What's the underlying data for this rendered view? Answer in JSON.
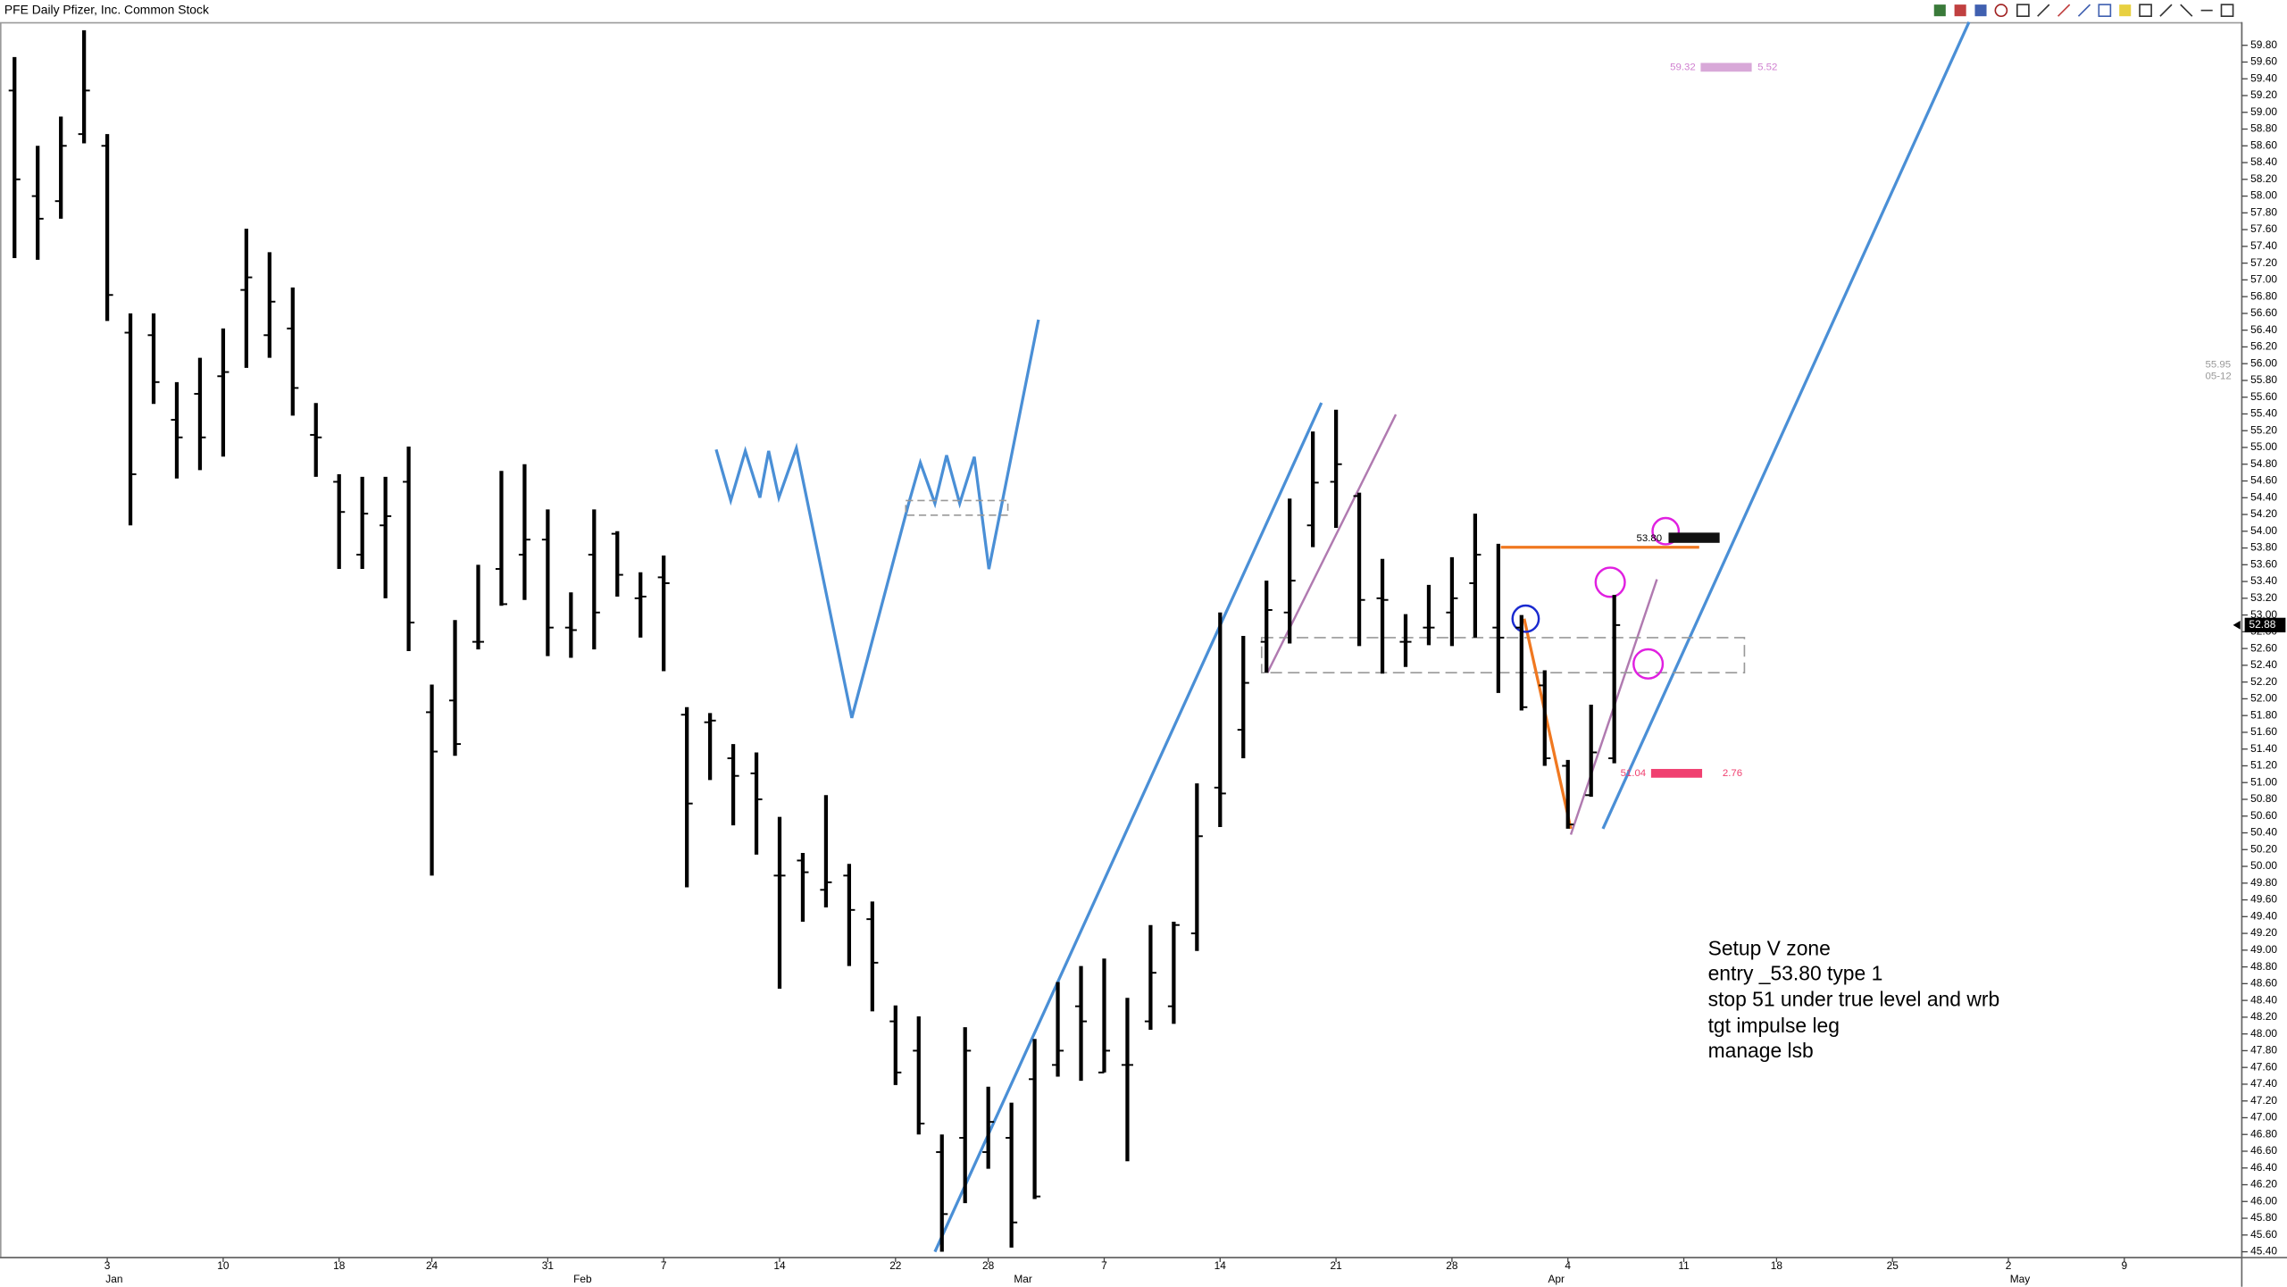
{
  "chart_data": {
    "type": "ohlc",
    "title": "PFE Daily Pfizer, Inc. Common Stock",
    "categories": [
      null,
      null,
      null,
      null,
      "3",
      null,
      null,
      null,
      null,
      "10",
      null,
      null,
      null,
      null,
      "18",
      null,
      null,
      null,
      "24",
      null,
      null,
      null,
      null,
      "31",
      null,
      null,
      null,
      null,
      "7",
      null,
      null,
      null,
      null,
      "14",
      null,
      null,
      null,
      null,
      "22",
      null,
      null,
      null,
      "28",
      null,
      null,
      null,
      null,
      "7",
      null,
      null,
      null,
      null,
      "14",
      null,
      null,
      null,
      null,
      "21",
      null,
      null,
      null,
      null,
      "28",
      null,
      null,
      null,
      null,
      "4",
      null,
      null,
      null,
      null,
      "11",
      null,
      null,
      null,
      "18",
      null,
      null,
      null,
      null,
      "25",
      null,
      null,
      null,
      null,
      "2",
      null,
      null,
      null,
      null,
      "9",
      null,
      null,
      null,
      null
    ],
    "month_ticks": [
      {
        "value": 4.3,
        "label": "Jan"
      },
      {
        "value": 24.5,
        "label": "Feb"
      },
      {
        "value": 43.5,
        "label": "Mar"
      },
      {
        "value": 66.5,
        "label": "Apr"
      },
      {
        "value": 86.5,
        "label": "May"
      }
    ],
    "color": "#000000",
    "series": [
      {
        "name": "open",
        "values": [
          59.26,
          58.0,
          57.94,
          58.74,
          58.6,
          56.37,
          56.34,
          55.33,
          55.64,
          55.85,
          56.88,
          56.34,
          56.42,
          55.15,
          54.59,
          53.72,
          54.07,
          54.59,
          51.84,
          51.98,
          52.68,
          53.55,
          53.72,
          53.9,
          52.85,
          53.72,
          53.97,
          53.2,
          53.45,
          51.81,
          51.72,
          51.29,
          51.11,
          49.89,
          50.07,
          49.72,
          49.89,
          49.37,
          48.15,
          47.8,
          46.59,
          46.76,
          46.59,
          46.76,
          47.46,
          47.63,
          48.33,
          47.54,
          47.63,
          48.15,
          48.33,
          49.2,
          50.94,
          51.63,
          52.68,
          53.03,
          54.07,
          54.59,
          54.42,
          53.2,
          52.68,
          52.85,
          53.03,
          53.38,
          52.85,
          52.85,
          52.16,
          51.2,
          50.85,
          51.29,
          null,
          null,
          null,
          null,
          null,
          null,
          null,
          null,
          null,
          null,
          null,
          null,
          null,
          null,
          null,
          null,
          null,
          null,
          null,
          null,
          null,
          null,
          null,
          null,
          null,
          null
        ]
      },
      {
        "name": "high",
        "values": [
          59.66,
          58.6,
          58.95,
          59.98,
          58.74,
          56.6,
          56.6,
          55.78,
          56.07,
          56.42,
          57.61,
          57.33,
          56.91,
          55.53,
          54.68,
          54.65,
          54.65,
          55.01,
          52.17,
          52.94,
          53.6,
          54.72,
          54.8,
          54.26,
          53.27,
          54.26,
          54.0,
          53.51,
          53.71,
          51.9,
          51.83,
          51.46,
          51.36,
          50.59,
          50.16,
          50.85,
          50.03,
          49.58,
          48.34,
          48.21,
          46.8,
          48.08,
          47.37,
          47.18,
          47.94,
          48.62,
          48.81,
          48.9,
          48.43,
          49.3,
          49.34,
          50.99,
          53.03,
          52.75,
          53.41,
          54.39,
          55.19,
          55.45,
          54.46,
          53.67,
          53.01,
          53.36,
          53.69,
          54.21,
          53.85,
          53.0,
          52.34,
          51.27,
          51.93,
          53.24,
          null,
          null,
          null,
          null,
          null,
          null,
          null,
          null,
          null,
          null,
          null,
          null,
          null,
          null,
          null,
          null,
          null,
          null,
          null,
          null,
          null,
          null,
          null,
          null,
          null,
          null
        ]
      },
      {
        "name": "low",
        "values": [
          57.26,
          57.24,
          57.73,
          58.63,
          56.51,
          54.07,
          55.52,
          54.63,
          54.73,
          54.89,
          55.95,
          56.07,
          55.38,
          54.65,
          53.55,
          53.55,
          53.2,
          52.57,
          49.89,
          51.32,
          52.59,
          53.11,
          53.18,
          52.51,
          52.49,
          52.59,
          53.22,
          52.73,
          52.33,
          49.75,
          51.03,
          50.49,
          50.14,
          48.54,
          49.34,
          49.51,
          48.81,
          48.27,
          47.39,
          46.8,
          45.4,
          45.98,
          46.39,
          45.45,
          46.03,
          47.49,
          47.44,
          47.54,
          46.48,
          48.05,
          48.12,
          48.99,
          50.47,
          51.29,
          52.31,
          52.66,
          53.81,
          54.04,
          52.63,
          52.3,
          52.38,
          52.64,
          52.63,
          52.73,
          52.07,
          51.86,
          51.2,
          50.45,
          50.83,
          51.23,
          null,
          null,
          null,
          null,
          null,
          null,
          null,
          null,
          null,
          null,
          null,
          null,
          null,
          null,
          null,
          null,
          null,
          null,
          null,
          null,
          null,
          null,
          null,
          null,
          null,
          null
        ]
      },
      {
        "name": "close",
        "values": [
          58.2,
          57.73,
          58.6,
          59.26,
          56.82,
          54.68,
          55.78,
          55.12,
          55.12,
          55.9,
          57.03,
          56.74,
          55.71,
          55.12,
          54.23,
          54.21,
          54.18,
          52.91,
          51.37,
          51.46,
          52.68,
          53.13,
          53.9,
          52.85,
          52.82,
          53.03,
          53.48,
          53.22,
          53.38,
          50.75,
          51.74,
          51.08,
          50.8,
          49.89,
          49.93,
          49.81,
          49.48,
          48.85,
          47.54,
          46.93,
          45.85,
          47.8,
          46.95,
          45.75,
          46.06,
          47.8,
          48.15,
          47.8,
          47.63,
          48.73,
          49.3,
          50.36,
          50.87,
          52.19,
          53.06,
          53.41,
          54.58,
          54.8,
          53.18,
          53.18,
          52.68,
          52.85,
          53.2,
          53.72,
          52.73,
          51.9,
          51.29,
          50.5,
          51.36,
          52.88,
          null,
          null,
          null,
          null,
          null,
          null,
          null,
          null,
          null,
          null,
          null,
          null,
          null,
          null,
          null,
          null,
          null,
          null,
          null,
          null,
          null,
          null,
          null,
          null,
          null,
          null
        ]
      }
    ],
    "ylim": [
      45.33,
      59.99
    ],
    "yticks": [
      {
        "value": 45.4,
        "label": "45.40"
      },
      {
        "value": 45.6,
        "label": "45.60"
      },
      {
        "value": 45.8,
        "label": "45.80"
      },
      {
        "value": 46,
        "label": "46.00"
      },
      {
        "value": 46.2,
        "label": "46.20"
      },
      {
        "value": 46.4,
        "label": "46.40"
      },
      {
        "value": 46.6,
        "label": "46.60"
      },
      {
        "value": 46.8,
        "label": "46.80"
      },
      {
        "value": 47,
        "label": "47.00"
      },
      {
        "value": 47.2,
        "label": "47.20"
      },
      {
        "value": 47.4,
        "label": "47.40"
      },
      {
        "value": 47.6,
        "label": "47.60"
      },
      {
        "value": 47.8,
        "label": "47.80"
      },
      {
        "value": 48,
        "label": "48.00"
      },
      {
        "value": 48.2,
        "label": "48.20"
      },
      {
        "value": 48.4,
        "label": "48.40"
      },
      {
        "value": 48.6,
        "label": "48.60"
      },
      {
        "value": 48.8,
        "label": "48.80"
      },
      {
        "value": 49,
        "label": "49.00"
      },
      {
        "value": 49.2,
        "label": "49.20"
      },
      {
        "value": 49.4,
        "label": "49.40"
      },
      {
        "value": 49.6,
        "label": "49.60"
      },
      {
        "value": 49.8,
        "label": "49.80"
      },
      {
        "value": 50,
        "label": "50.00"
      },
      {
        "value": 50.2,
        "label": "50.20"
      },
      {
        "value": 50.4,
        "label": "50.40"
      },
      {
        "value": 50.6,
        "label": "50.60"
      },
      {
        "value": 50.8,
        "label": "50.80"
      },
      {
        "value": 51,
        "label": "51.00"
      },
      {
        "value": 51.2,
        "label": "51.20"
      },
      {
        "value": 51.4,
        "label": "51.40"
      },
      {
        "value": 51.6,
        "label": "51.60"
      },
      {
        "value": 51.8,
        "label": "51.80"
      },
      {
        "value": 52,
        "label": "52.00"
      },
      {
        "value": 52.2,
        "label": "52.20"
      },
      {
        "value": 52.4,
        "label": "52.40"
      },
      {
        "value": 52.6,
        "label": "52.60"
      },
      {
        "value": 52.8,
        "label": "52.80"
      },
      {
        "value": 53,
        "label": "53.00"
      },
      {
        "value": 53.2,
        "label": "53.20"
      },
      {
        "value": 53.4,
        "label": "53.40"
      },
      {
        "value": 53.6,
        "label": "53.60"
      },
      {
        "value": 53.8,
        "label": "53.80"
      },
      {
        "value": 54,
        "label": "54.00"
      },
      {
        "value": 54.2,
        "label": "54.20"
      },
      {
        "value": 54.4,
        "label": "54.40"
      },
      {
        "value": 54.6,
        "label": "54.60"
      },
      {
        "value": 54.8,
        "label": "54.80"
      },
      {
        "value": 55,
        "label": "55.00"
      },
      {
        "value": 55.2,
        "label": "55.20"
      },
      {
        "value": 55.4,
        "label": "55.40"
      },
      {
        "value": 55.6,
        "label": "55.60"
      },
      {
        "value": 55.8,
        "label": "55.80"
      },
      {
        "value": 56,
        "label": "56.00"
      },
      {
        "value": 56.2,
        "label": "56.20"
      },
      {
        "value": 56.4,
        "label": "56.40"
      },
      {
        "value": 56.6,
        "label": "56.60"
      },
      {
        "value": 56.8,
        "label": "56.80"
      },
      {
        "value": 57,
        "label": "57.00"
      },
      {
        "value": 57.2,
        "label": "57.20"
      },
      {
        "value": 57.4,
        "label": "57.40"
      },
      {
        "value": 57.6,
        "label": "57.60"
      },
      {
        "value": 57.8,
        "label": "57.80"
      },
      {
        "value": 58,
        "label": "58.00"
      },
      {
        "value": 58.2,
        "label": "58.20"
      },
      {
        "value": 58.4,
        "label": "58.40"
      },
      {
        "value": 58.6,
        "label": "58.60"
      },
      {
        "value": 58.8,
        "label": "58.80"
      },
      {
        "value": 59,
        "label": "59.00"
      },
      {
        "value": 59.2,
        "label": "59.20"
      },
      {
        "value": 59.4,
        "label": "59.40"
      },
      {
        "value": 59.6,
        "label": "59.60"
      },
      {
        "value": 59.8,
        "label": "59.80"
      }
    ],
    "grid": false,
    "annotations": {
      "target": [
        "59.32",
        "5.52"
      ],
      "entry": "53.80",
      "stop": [
        "51.04",
        "2.76"
      ],
      "side": [
        "55.95",
        "05-12"
      ],
      "last_price": "52.88",
      "note": [
        "Setup V zone",
        "entry _53.80  type 1",
        "stop 51 under true level and wrb",
        "tgt impulse leg",
        "manage lsb"
      ]
    }
  }
}
